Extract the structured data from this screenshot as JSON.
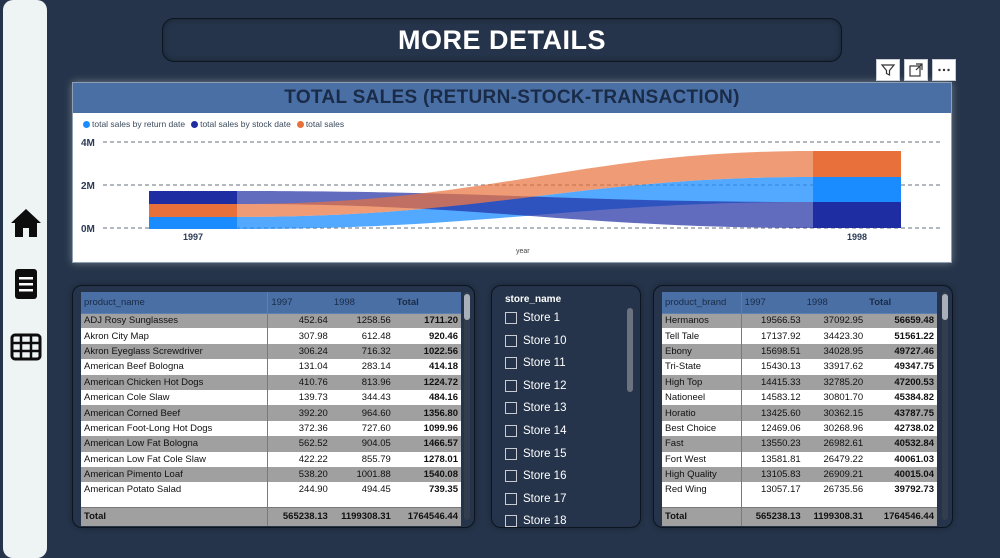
{
  "page_title": "MORE DETAILS",
  "sidebar": {
    "icons": [
      "home-icon",
      "document-icon",
      "table-icon"
    ]
  },
  "visual_header": {
    "buttons": [
      "filter-icon",
      "focus-mode-icon",
      "more-options-icon"
    ]
  },
  "chart_data": {
    "type": "ribbon",
    "title": "TOTAL SALES (RETURN-STOCK-TRANSACTION)",
    "xlabel": "year",
    "ylabel": "",
    "categories": [
      "1997",
      "1998"
    ],
    "ytick_labels": [
      "0M",
      "2M",
      "4M"
    ],
    "ylim": [
      0,
      4000000
    ],
    "grid": true,
    "legend_position": "top-left",
    "series": [
      {
        "name": "total sales by return date",
        "color": "#1a8cff",
        "values": [
          565238.13,
          1199308.31
        ]
      },
      {
        "name": "total sales by stock date",
        "color": "#1f2da3",
        "values": [
          565238.13,
          1199308.31
        ]
      },
      {
        "name": "total sales",
        "color": "#e8703a",
        "values": [
          565238.13,
          1199308.31
        ]
      }
    ]
  },
  "product_table": {
    "headers": [
      "product_name",
      "1997",
      "1998",
      "Total"
    ],
    "rows": [
      [
        "ADJ Rosy Sunglasses",
        "452.64",
        "1258.56",
        "1711.20"
      ],
      [
        "Akron City Map",
        "307.98",
        "612.48",
        "920.46"
      ],
      [
        "Akron Eyeglass Screwdriver",
        "306.24",
        "716.32",
        "1022.56"
      ],
      [
        "American Beef Bologna",
        "131.04",
        "283.14",
        "414.18"
      ],
      [
        "American Chicken Hot Dogs",
        "410.76",
        "813.96",
        "1224.72"
      ],
      [
        "American Cole Slaw",
        "139.73",
        "344.43",
        "484.16"
      ],
      [
        "American Corned Beef",
        "392.20",
        "964.60",
        "1356.80"
      ],
      [
        "American Foot-Long Hot Dogs",
        "372.36",
        "727.60",
        "1099.96"
      ],
      [
        "American Low Fat Bologna",
        "562.52",
        "904.05",
        "1466.57"
      ],
      [
        "American Low Fat Cole Slaw",
        "422.22",
        "855.79",
        "1278.01"
      ],
      [
        "American Pimento Loaf",
        "538.20",
        "1001.88",
        "1540.08"
      ],
      [
        "American Potato Salad",
        "244.90",
        "494.45",
        "739.35"
      ]
    ],
    "total": [
      "Total",
      "565238.13",
      "1199308.31",
      "1764546.44"
    ]
  },
  "store_slicer": {
    "title": "store_name",
    "items": [
      "Store 1",
      "Store 10",
      "Store 11",
      "Store 12",
      "Store 13",
      "Store 14",
      "Store 15",
      "Store 16",
      "Store 17",
      "Store 18"
    ]
  },
  "brand_table": {
    "headers": [
      "product_brand",
      "1997",
      "1998",
      "Total"
    ],
    "rows": [
      [
        "Hermanos",
        "19566.53",
        "37092.95",
        "56659.48"
      ],
      [
        "Tell Tale",
        "17137.92",
        "34423.30",
        "51561.22"
      ],
      [
        "Ebony",
        "15698.51",
        "34028.95",
        "49727.46"
      ],
      [
        "Tri-State",
        "15430.13",
        "33917.62",
        "49347.75"
      ],
      [
        "High Top",
        "14415.33",
        "32785.20",
        "47200.53"
      ],
      [
        "Nationeel",
        "14583.12",
        "30801.70",
        "45384.82"
      ],
      [
        "Horatio",
        "13425.60",
        "30362.15",
        "43787.75"
      ],
      [
        "Best Choice",
        "12469.06",
        "30268.96",
        "42738.02"
      ],
      [
        "Fast",
        "13550.23",
        "26982.61",
        "40532.84"
      ],
      [
        "Fort West",
        "13581.81",
        "26479.22",
        "40061.03"
      ],
      [
        "High Quality",
        "13105.83",
        "26909.21",
        "40015.04"
      ],
      [
        "Red Wing",
        "13057.17",
        "26735.56",
        "39792.73"
      ]
    ],
    "total": [
      "Total",
      "565238.13",
      "1199308.31",
      "1764546.44"
    ]
  }
}
